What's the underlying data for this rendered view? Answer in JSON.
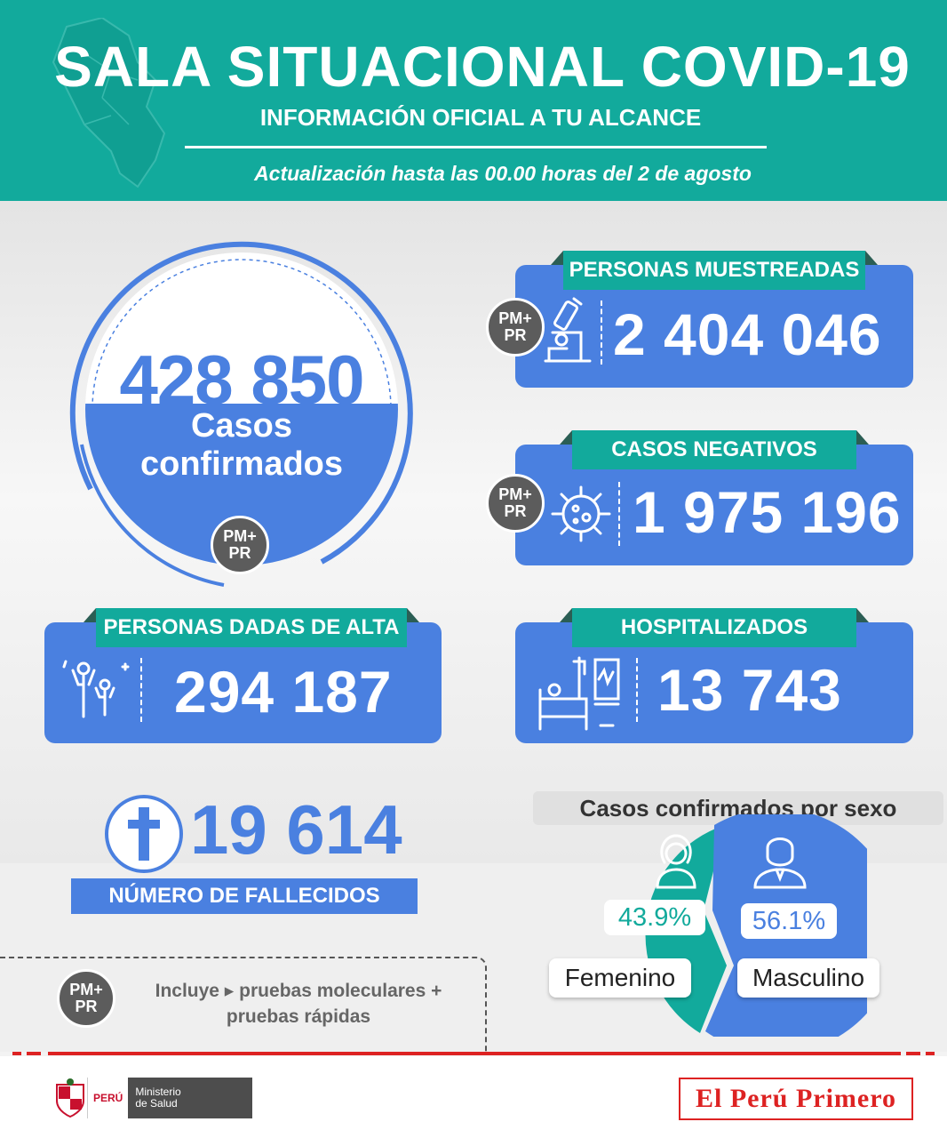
{
  "header": {
    "title": "SALA SITUACIONAL COVID-19",
    "subtitle": "INFORMACIÓN OFICIAL A TU ALCANCE",
    "update": "Actualización hasta las 00.00 horas del 2 de agosto"
  },
  "badge": {
    "line1": "PM+",
    "line2": "PR"
  },
  "confirmed": {
    "value": "428 850",
    "label_line1": "Casos",
    "label_line2": "confirmados"
  },
  "sampled": {
    "title": "PERSONAS MUESTREADAS",
    "value": "2 404 046",
    "icon": "microscope-icon"
  },
  "negative": {
    "title": "CASOS NEGATIVOS",
    "value": "1 975 196",
    "icon": "virus-icon"
  },
  "discharged": {
    "title": "PERSONAS DADAS DE ALTA",
    "value": "294 187",
    "icon": "celebrating-family-icon"
  },
  "hospitalized": {
    "title": "HOSPITALIZADOS",
    "value": "13 743",
    "icon": "hospital-bed-icon"
  },
  "deaths": {
    "value": "19 614",
    "label": "NÚMERO DE FALLECIDOS",
    "icon": "cross-icon"
  },
  "sex": {
    "title": "Casos confirmados por sexo",
    "female": {
      "label": "Femenino",
      "pct_text": "43.9%",
      "pct": 43.9,
      "icon": "woman-icon"
    },
    "male": {
      "label": "Masculino",
      "pct_text": "56.1%",
      "pct": 56.1,
      "icon": "man-icon"
    }
  },
  "note": {
    "line1": "Incluye ▸ pruebas moleculares +",
    "line2": "pruebas rápidas"
  },
  "footer": {
    "country": "PERÚ",
    "ministry_line1": "Ministerio",
    "ministry_line2": "de Salud",
    "brand": "El Perú Primero"
  },
  "colors": {
    "teal": "#12aa9c",
    "blue": "#4a80e0",
    "gray_badge": "#5c5c5c",
    "red": "#d22222"
  }
}
